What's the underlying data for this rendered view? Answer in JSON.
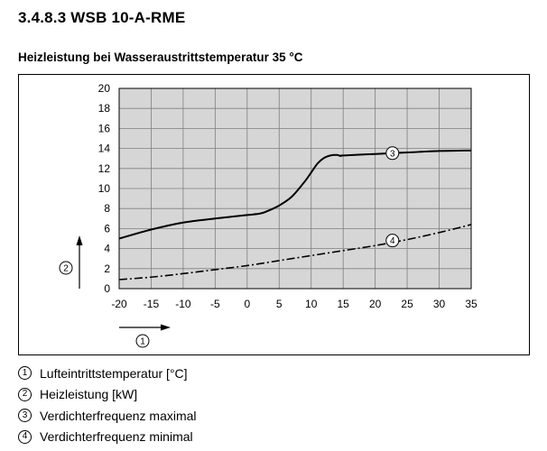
{
  "document": {
    "heading": "3.4.8.3 WSB 10-A-RME"
  },
  "colors": {
    "plot_background": "#d6d6d6",
    "grid": "#7f7f7f",
    "line": "#000000"
  },
  "chart_data": {
    "type": "line",
    "title": "Heizleistung bei Wasseraustrittstemperatur 35 °C",
    "xlabel": "Lufteintrittstemperatur [°C]",
    "x_marker": "1",
    "ylabel": "Heizleistung [kW]",
    "y_marker": "2",
    "xlim": [
      -20,
      35
    ],
    "ylim": [
      0,
      20
    ],
    "x_ticks": [
      -20,
      -15,
      -10,
      -5,
      0,
      5,
      10,
      15,
      20,
      25,
      30,
      35
    ],
    "y_ticks": [
      0,
      2,
      4,
      6,
      8,
      10,
      12,
      14,
      16,
      18,
      20
    ],
    "grid": true,
    "series": [
      {
        "name": "Verdichterfrequenz maximal",
        "marker": "3",
        "line_style": "solid",
        "x": [
          -20,
          -15,
          -10,
          -5,
          0,
          2,
          3,
          5,
          7,
          9,
          10,
          11,
          12,
          13,
          14,
          14.6,
          15,
          20,
          25,
          30,
          35
        ],
        "y": [
          5.0,
          5.9,
          6.6,
          7.0,
          7.35,
          7.5,
          7.7,
          8.3,
          9.2,
          10.7,
          11.6,
          12.5,
          13.05,
          13.3,
          13.35,
          13.25,
          13.3,
          13.45,
          13.6,
          13.75,
          13.8
        ]
      },
      {
        "name": "Verdichterfrequenz minimal",
        "marker": "4",
        "line_style": "dash-dot",
        "x": [
          -20,
          -15,
          -10,
          -5,
          0,
          5,
          10,
          15,
          20,
          25,
          30,
          35
        ],
        "y": [
          0.9,
          1.15,
          1.5,
          1.9,
          2.3,
          2.8,
          3.3,
          3.8,
          4.3,
          4.9,
          5.6,
          6.4
        ]
      }
    ]
  }
}
